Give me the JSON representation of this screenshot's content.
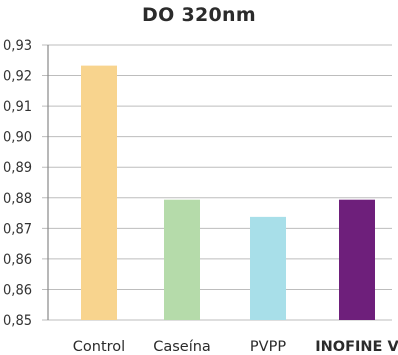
{
  "chart_data": {
    "type": "bar",
    "title": "DO 320nm",
    "xlabel": "",
    "ylabel": "",
    "categories": [
      "Control",
      "Caseína",
      "PVPP",
      "INOFINE V"
    ],
    "values": [
      0.924,
      0.885,
      0.88,
      0.885
    ],
    "ylim": [
      0.85,
      0.93
    ],
    "y_tick_labels": [
      "0,93",
      "0,92",
      "0,91",
      "0,90",
      "0,89",
      "0,88",
      "0,87",
      "0,86",
      "0,86",
      "0,85"
    ],
    "grid": true,
    "legend": "none",
    "bar_colors": [
      "#f8d48e",
      "#b5dbaa",
      "#a8dfe9",
      "#6e1f7b"
    ],
    "highlight_label_color": "#6e1f7b",
    "highlight_category": "INOFINE V"
  }
}
